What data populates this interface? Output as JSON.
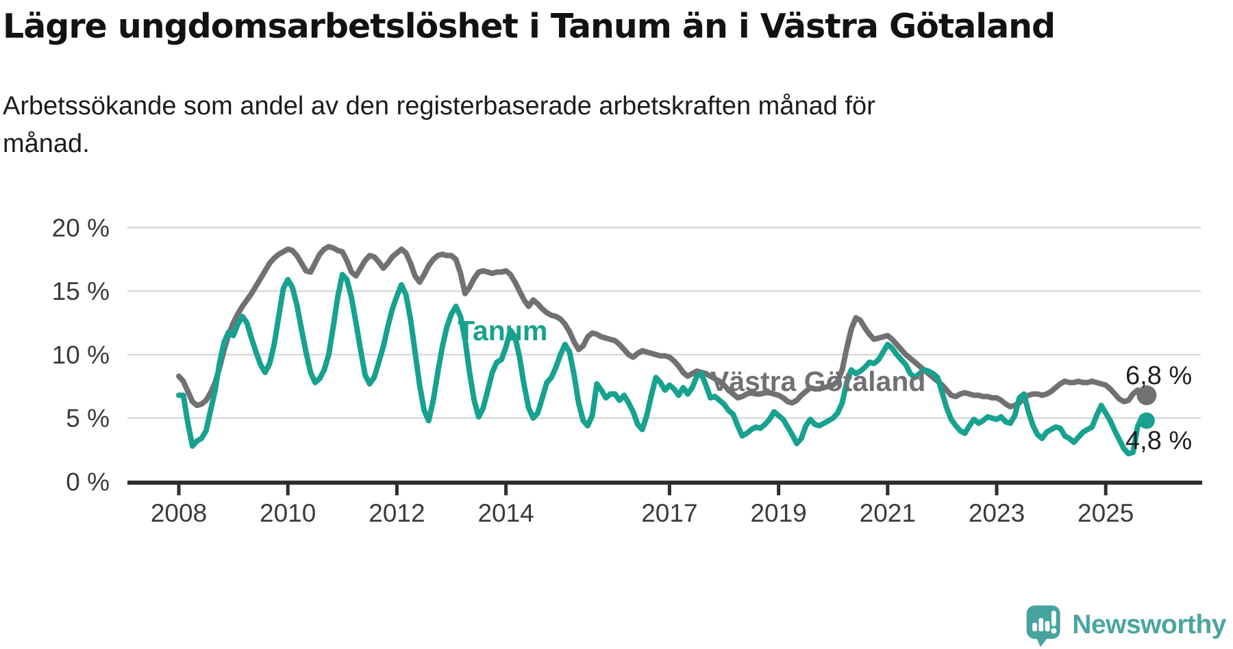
{
  "header": {
    "title": "Lägre ungdomsarbetslöshet i Tanum än i Västra Götaland",
    "subtitle_line1": "Arbetssökande som andel av den registerbaserade arbetskraften månad för",
    "subtitle_line2": "månad."
  },
  "footer": {
    "brand": "Newsworthy",
    "logo_icon": "newsworthy-speech-bubble-bar-chart-icon"
  },
  "colors": {
    "tanum_line": "#17a28f",
    "vastra_gotaland_line": "#717174",
    "end_label_text": "#1f1f1f",
    "axis": "#2e2e2e",
    "tick_text": "#3a3a3a",
    "gridline": "#d9d9d9",
    "logo_teal": "#46a49f"
  },
  "chart_data": {
    "type": "line",
    "title": "Lägre ungdomsarbetslöshet i Tanum än i Västra Götaland",
    "subtitle": "Arbetssökande som andel av den registerbaserade arbetskraften månad för månad.",
    "xlabel": "",
    "ylabel": "",
    "x_interval": "monthly",
    "x_start": "2008-01",
    "x_end": "2025-10",
    "ylim": [
      0,
      20
    ],
    "grid": "horizontal",
    "x_ticks": [
      {
        "year": 2008,
        "label": "2008"
      },
      {
        "year": 2010,
        "label": "2010"
      },
      {
        "year": 2012,
        "label": "2012"
      },
      {
        "year": 2014,
        "label": "2014"
      },
      {
        "year": 2017,
        "label": "2017"
      },
      {
        "year": 2019,
        "label": "2019"
      },
      {
        "year": 2021,
        "label": "2021"
      },
      {
        "year": 2023,
        "label": "2023"
      },
      {
        "year": 2025,
        "label": "2025"
      }
    ],
    "y_ticks": [
      {
        "value": 20,
        "label": "20 %"
      },
      {
        "value": 15,
        "label": "15 %"
      },
      {
        "value": 10,
        "label": "10 %"
      },
      {
        "value": 5,
        "label": "5 %"
      },
      {
        "value": 0,
        "label": "0 %"
      }
    ],
    "series": [
      {
        "name": "Västra Götaland",
        "color": "#717174",
        "end_value": 6.8,
        "end_label": "6,8 %",
        "values": [
          8.3,
          7.9,
          7.1,
          6.3,
          6.0,
          6.1,
          6.4,
          7.0,
          7.8,
          9.0,
          10.4,
          11.6,
          12.5,
          13.2,
          13.8,
          14.3,
          14.8,
          15.4,
          16.0,
          16.6,
          17.2,
          17.6,
          17.9,
          18.1,
          18.3,
          18.2,
          17.8,
          17.2,
          16.6,
          16.5,
          17.2,
          17.9,
          18.3,
          18.5,
          18.4,
          18.2,
          18.1,
          17.4,
          16.5,
          16.2,
          16.8,
          17.4,
          17.8,
          17.7,
          17.3,
          16.8,
          17.2,
          17.7,
          18.0,
          18.3,
          18.0,
          17.2,
          16.2,
          15.7,
          16.3,
          17.0,
          17.5,
          17.8,
          17.9,
          17.8,
          17.8,
          17.5,
          16.4,
          14.8,
          15.3,
          16.0,
          16.5,
          16.6,
          16.5,
          16.4,
          16.5,
          16.5,
          16.6,
          16.3,
          15.7,
          15.0,
          14.3,
          13.8,
          14.3,
          14.0,
          13.6,
          13.3,
          13.1,
          13.0,
          12.8,
          12.4,
          11.8,
          11.0,
          10.4,
          10.7,
          11.4,
          11.7,
          11.6,
          11.4,
          11.3,
          11.2,
          11.1,
          10.8,
          10.4,
          10.0,
          9.8,
          10.1,
          10.3,
          10.2,
          10.1,
          10.0,
          9.9,
          9.9,
          9.8,
          9.5,
          9.1,
          8.6,
          8.3,
          8.5,
          8.7,
          8.6,
          8.5,
          8.3,
          8.1,
          7.9,
          7.6,
          7.2,
          6.9,
          6.6,
          6.7,
          6.9,
          7.0,
          6.9,
          6.9,
          7.0,
          7.0,
          6.9,
          6.8,
          6.6,
          6.3,
          6.2,
          6.4,
          6.8,
          7.1,
          7.4,
          7.3,
          7.3,
          7.4,
          7.5,
          7.6,
          7.9,
          8.8,
          10.5,
          12.0,
          12.9,
          12.7,
          12.1,
          11.6,
          11.2,
          11.3,
          11.4,
          11.5,
          11.2,
          10.8,
          10.4,
          10.0,
          9.7,
          9.4,
          9.1,
          8.8,
          8.5,
          8.2,
          7.9,
          7.6,
          7.2,
          6.8,
          6.7,
          6.9,
          7.0,
          6.9,
          6.8,
          6.8,
          6.7,
          6.7,
          6.6,
          6.6,
          6.4,
          6.1,
          5.9,
          6.0,
          6.2,
          6.6,
          6.8,
          6.9,
          6.9,
          6.8,
          6.9,
          7.1,
          7.4,
          7.7,
          7.9,
          7.8,
          7.8,
          7.9,
          7.8,
          7.8,
          7.9,
          7.8,
          7.7,
          7.6,
          7.3,
          6.9,
          6.5,
          6.3,
          6.4,
          6.9,
          7.2,
          7.0,
          6.8
        ]
      },
      {
        "name": "Tanum",
        "color": "#17a28f",
        "end_value": 4.8,
        "end_label": "4,8 %",
        "values": [
          6.8,
          6.8,
          4.6,
          2.8,
          3.2,
          3.4,
          4.0,
          5.6,
          7.2,
          9.4,
          11.0,
          11.8,
          11.5,
          12.4,
          13.0,
          12.5,
          11.3,
          10.2,
          9.2,
          8.6,
          9.3,
          10.8,
          13.0,
          15.2,
          15.9,
          15.3,
          13.9,
          12.0,
          10.2,
          8.6,
          7.8,
          8.1,
          8.8,
          10.0,
          12.2,
          14.6,
          16.3,
          15.9,
          14.5,
          12.5,
          10.4,
          8.4,
          7.7,
          8.2,
          9.4,
          10.6,
          12.2,
          13.6,
          14.6,
          15.5,
          14.7,
          12.8,
          10.2,
          7.6,
          5.6,
          4.8,
          6.4,
          8.6,
          10.6,
          12.2,
          13.2,
          13.8,
          13.0,
          11.2,
          8.6,
          6.4,
          5.1,
          5.8,
          7.2,
          8.6,
          9.4,
          9.6,
          10.6,
          11.9,
          11.4,
          9.8,
          7.6,
          5.8,
          5.0,
          5.4,
          6.6,
          7.8,
          8.2,
          9.0,
          10.0,
          10.8,
          10.2,
          8.4,
          6.2,
          4.8,
          4.4,
          5.2,
          7.7,
          7.2,
          6.6,
          6.9,
          6.9,
          6.4,
          6.8,
          6.2,
          5.5,
          4.5,
          4.1,
          5.2,
          6.8,
          8.2,
          7.8,
          7.2,
          7.6,
          7.3,
          6.8,
          7.4,
          6.9,
          7.4,
          8.3,
          8.5,
          7.6,
          6.6,
          6.7,
          6.4,
          6.1,
          5.6,
          5.3,
          4.4,
          3.6,
          3.8,
          4.1,
          4.3,
          4.2,
          4.5,
          4.9,
          5.5,
          5.2,
          4.9,
          4.3,
          3.7,
          3.0,
          3.4,
          4.4,
          4.9,
          4.5,
          4.4,
          4.6,
          4.8,
          5.0,
          5.4,
          6.2,
          7.8,
          8.8,
          8.5,
          8.7,
          9.0,
          9.4,
          9.3,
          9.6,
          10.2,
          10.8,
          10.5,
          10.0,
          9.6,
          9.2,
          8.5,
          8.2,
          8.5,
          8.8,
          8.7,
          8.5,
          8.2,
          7.0,
          5.8,
          4.9,
          4.4,
          4.0,
          3.8,
          4.4,
          4.9,
          4.6,
          4.8,
          5.1,
          5.0,
          4.9,
          5.1,
          4.7,
          4.6,
          5.2,
          6.6,
          6.9,
          5.5,
          4.4,
          3.7,
          3.4,
          3.9,
          4.1,
          4.3,
          4.2,
          3.6,
          3.4,
          3.1,
          3.5,
          3.9,
          4.1,
          4.3,
          5.2,
          6.0,
          5.4,
          4.8,
          4.0,
          3.3,
          2.6,
          2.2,
          2.3,
          4.3,
          5.1,
          4.8
        ]
      }
    ],
    "annotations": {
      "series_label_vastra": "Västra Götaland",
      "series_label_tanum": "Tanum",
      "end_label_vastra": "6,8 %",
      "end_label_tanum": "4,8 %"
    },
    "legend": "inline-labels"
  }
}
